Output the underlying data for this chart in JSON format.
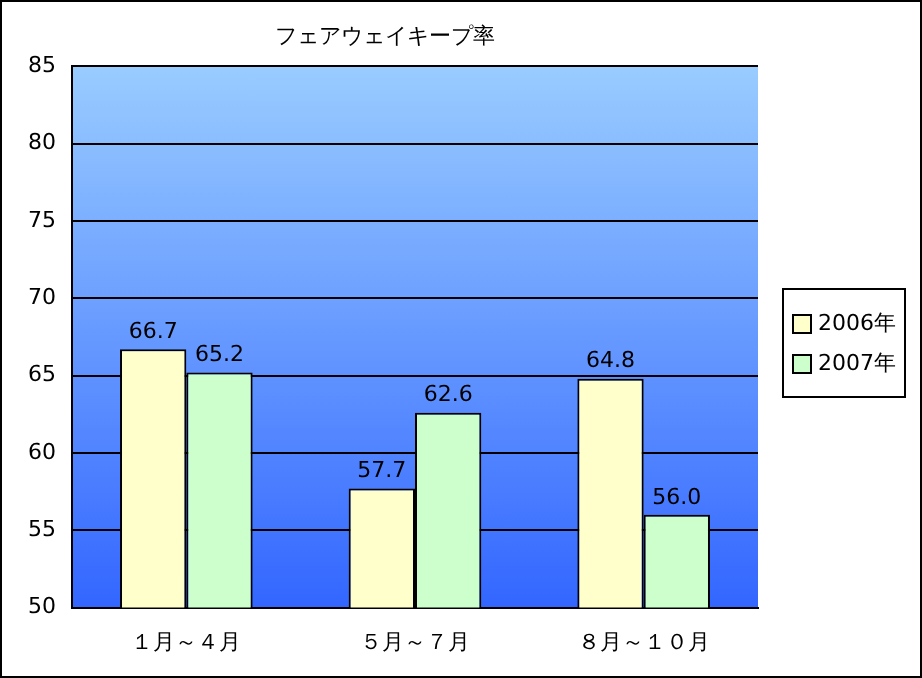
{
  "chart_data": {
    "type": "bar",
    "title": "フェアウェイキープ率",
    "categories": [
      "１月～４月",
      "５月～７月",
      "８月～１０月"
    ],
    "series": [
      {
        "name": "2006年",
        "color": "#ffffcc",
        "values": [
          66.7,
          57.7,
          64.8
        ],
        "value_labels": [
          "66.7",
          "57.7",
          "64.8"
        ]
      },
      {
        "name": "2007年",
        "color": "#ccffcc",
        "values": [
          65.2,
          62.6,
          56.0
        ],
        "value_labels": [
          "65.2",
          "62.6",
          "56.0"
        ]
      }
    ],
    "ylim": [
      50,
      85
    ],
    "yticks": [
      50,
      55,
      60,
      65,
      70,
      75,
      80,
      85
    ],
    "grid": "y",
    "legend": "right"
  }
}
